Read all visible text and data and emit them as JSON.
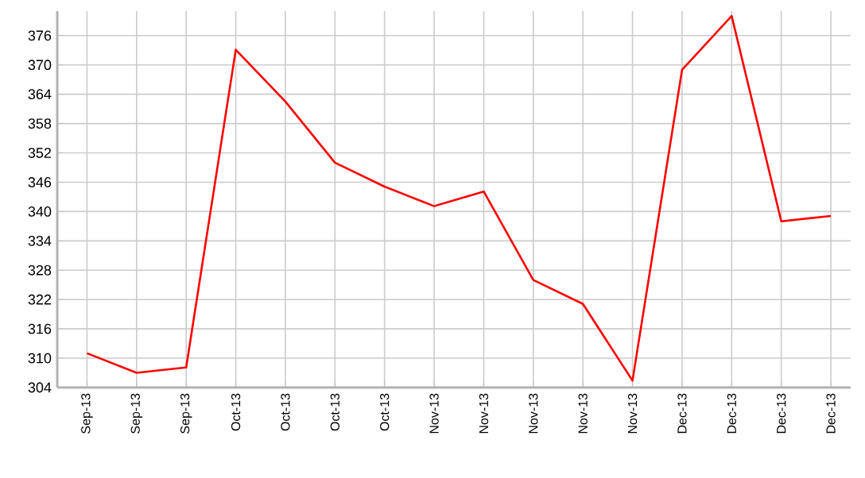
{
  "chart_data": {
    "type": "line",
    "categories": [
      "Sep-13",
      "Sep-13",
      "Sep-13",
      "Oct-13",
      "Oct-13",
      "Oct-13",
      "Oct-13",
      "Nov-13",
      "Nov-13",
      "Nov-13",
      "Nov-13",
      "Nov-13",
      "Dec-13",
      "Dec-13",
      "Dec-13",
      "Dec-13"
    ],
    "series": [
      {
        "color": "#ff0000",
        "values": [
          311.0,
          307.0,
          308.1,
          373.1,
          362.5,
          350.0,
          345.1,
          341.1,
          344.1,
          326.0,
          321.1,
          305.4,
          369.0,
          380.0,
          338.0,
          339.1
        ]
      }
    ],
    "ylim": [
      304,
      381
    ],
    "yticks": [
      304,
      310,
      316,
      322,
      328,
      334,
      340,
      346,
      352,
      358,
      364,
      370,
      376
    ],
    "grid": true,
    "line_style": "solid",
    "marker": "none"
  }
}
